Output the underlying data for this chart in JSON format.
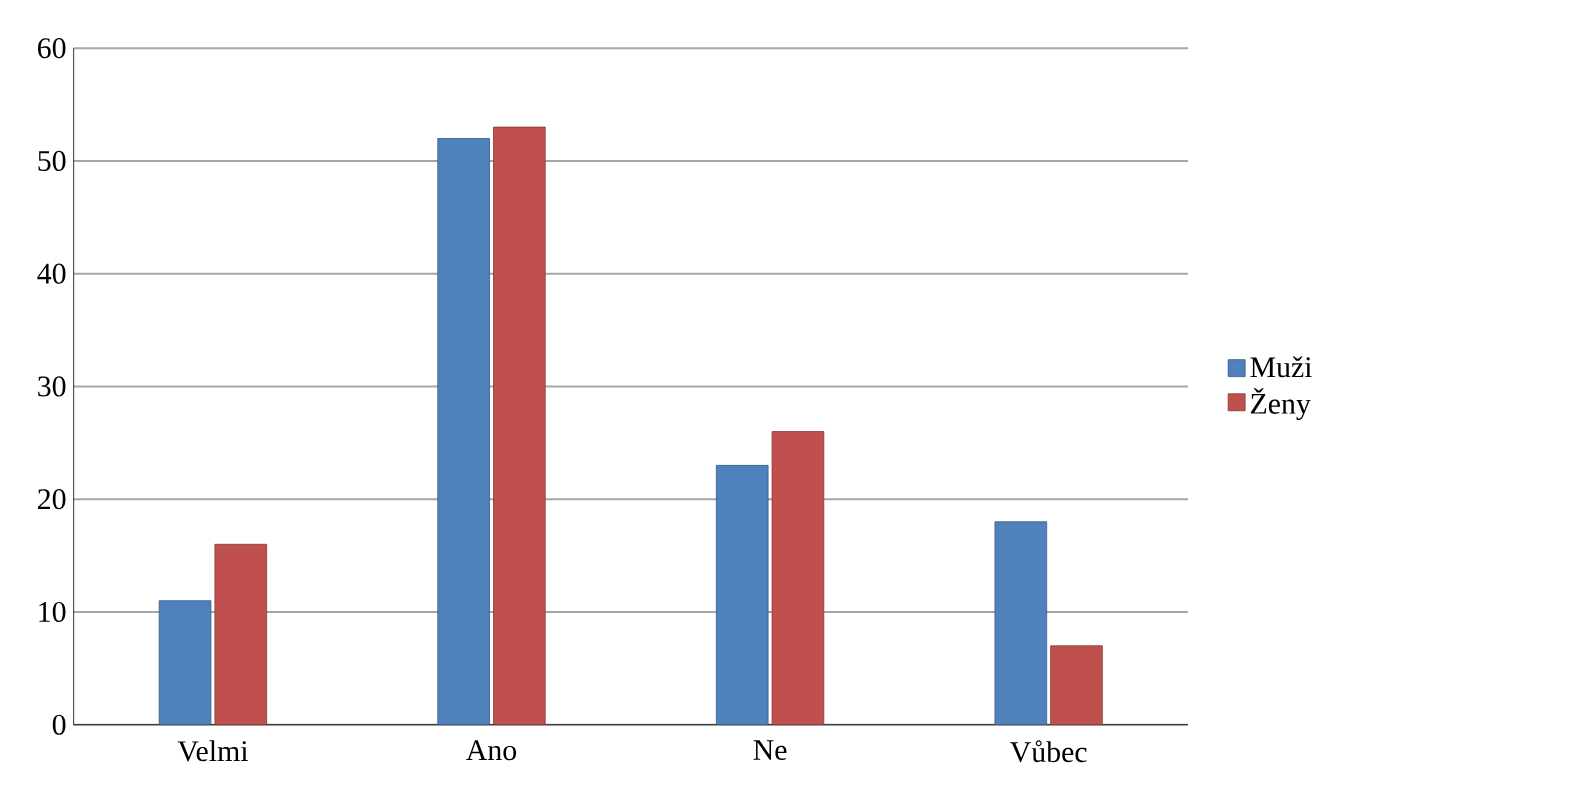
{
  "chart_data": {
    "type": "bar",
    "categories": [
      "Velmi",
      "Ano",
      "Ne",
      "Vůbec"
    ],
    "series": [
      {
        "name": "Muži",
        "color": "#4f81bd",
        "values": [
          11,
          52,
          23,
          18
        ]
      },
      {
        "name": "Ženy",
        "color": "#c0504d",
        "values": [
          16,
          53,
          26,
          7
        ]
      }
    ],
    "ylim": [
      0,
      60
    ],
    "yticks": [
      0,
      10,
      20,
      30,
      40,
      50,
      60
    ],
    "grid": "y",
    "legend": "right"
  }
}
